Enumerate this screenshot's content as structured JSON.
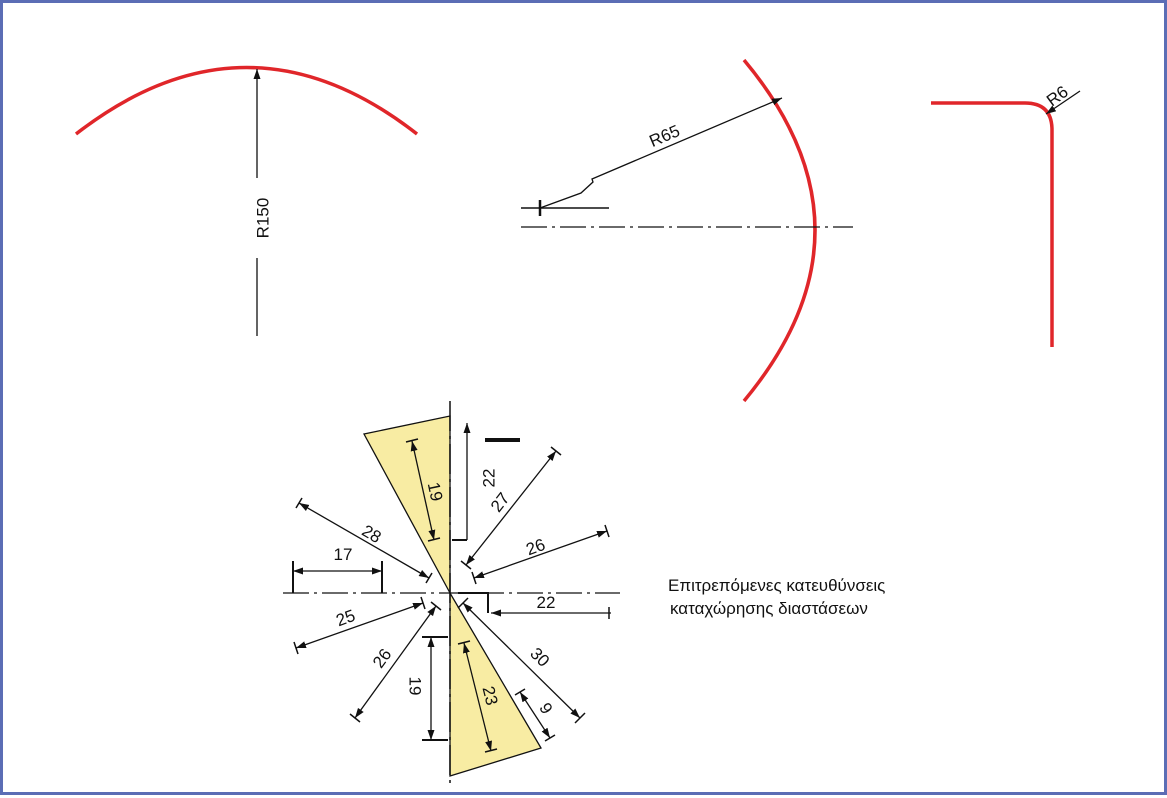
{
  "colors": {
    "frame_border": "#5b6db5",
    "arc_red": "#e0262a",
    "wedge_fill": "#f8eca3",
    "line": "#111111"
  },
  "radius_examples": {
    "large": {
      "label": "R150"
    },
    "medium": {
      "label": "R65"
    },
    "small": {
      "label": "R6"
    }
  },
  "direction_chart": {
    "labels": {
      "v19_top": "19",
      "v22_top": "22",
      "d27": "27",
      "d28": "28",
      "d26_right": "26",
      "h17": "17",
      "h22": "22",
      "d25": "25",
      "d30": "30",
      "d26_left": "26",
      "v19_bottom": "19",
      "v23": "23",
      "d9": "9"
    },
    "caption_line1": "Επιτρεπόμενες κατευθύνσεις",
    "caption_line2": "καταχώρησης διαστάσεων"
  }
}
